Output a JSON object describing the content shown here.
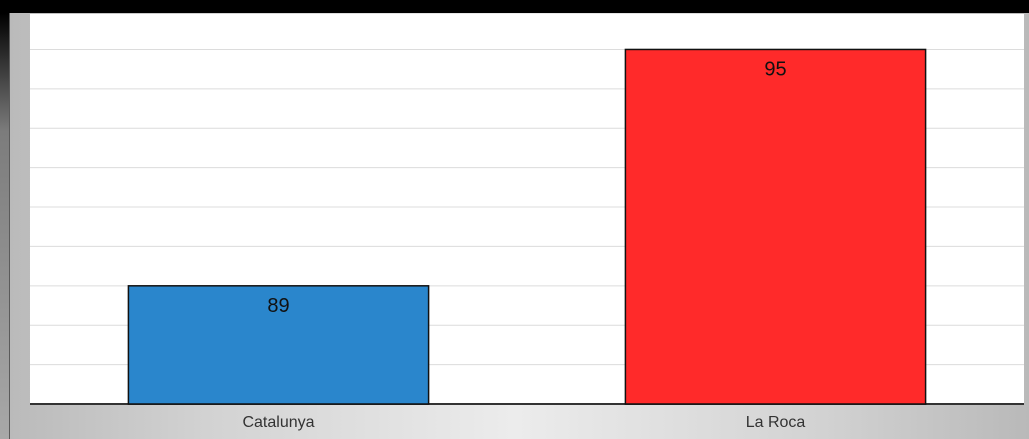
{
  "chart_data": {
    "type": "bar",
    "categories": [
      "Catalunya",
      "La Roca"
    ],
    "values": [
      89,
      95
    ],
    "colors": [
      "#2a86cc",
      "#ff2a2a"
    ],
    "ylim": [
      86,
      95.9
    ],
    "gridline_step": 1,
    "grid": true,
    "data_labels": [
      "89",
      "95"
    ]
  }
}
